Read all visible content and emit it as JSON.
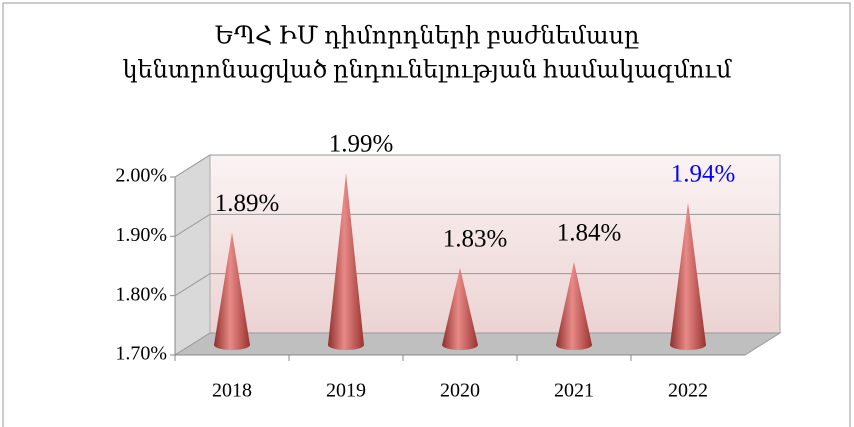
{
  "chart_data": {
    "type": "cone",
    "title": [
      "ԵՊՀ ԻՄ դիմորդների բաժնեմասը",
      "կենտրոնացված ընդունելության համակազմում"
    ],
    "categories": [
      "2018",
      "2019",
      "2020",
      "2021",
      "2022"
    ],
    "values": [
      1.89,
      1.99,
      1.83,
      1.84,
      1.94
    ],
    "value_labels": [
      "1.89%",
      "1.99%",
      "1.83%",
      "1.84%",
      "1.94%"
    ],
    "value_label_colors": [
      "#000000",
      "#000000",
      "#000000",
      "#000000",
      "#0000ff"
    ],
    "color": "#c0504d",
    "ylim": [
      1.7,
      2.0
    ],
    "yticks": [
      {
        "value": 1.7,
        "label": "1.70%"
      },
      {
        "value": 1.8,
        "label": "1.80%"
      },
      {
        "value": 1.9,
        "label": "1.90%"
      },
      {
        "value": 2.0,
        "label": "2.00%"
      }
    ],
    "grid": true
  }
}
